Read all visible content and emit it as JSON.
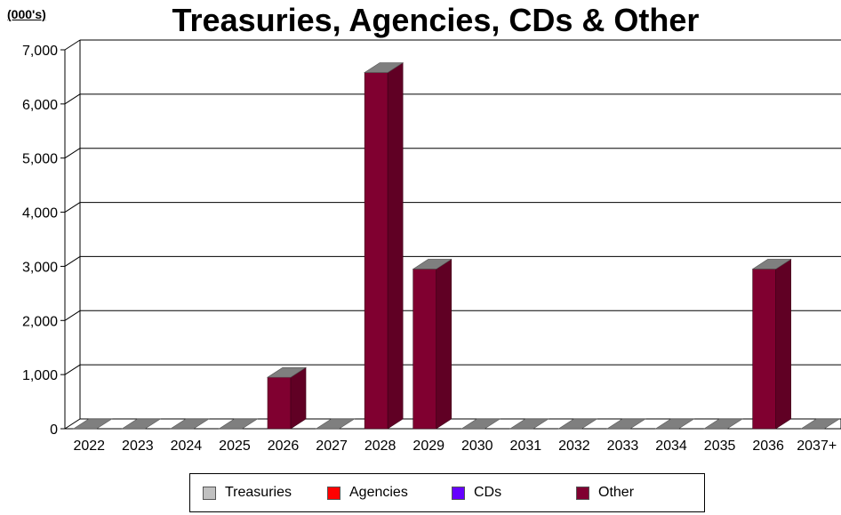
{
  "chart_data": {
    "type": "bar",
    "unit_label": "(000's)",
    "title": "Treasuries, Agencies, CDs & Other",
    "categories": [
      "2022",
      "2023",
      "2024",
      "2025",
      "2026",
      "2027",
      "2028",
      "2029",
      "2030",
      "2031",
      "2032",
      "2033",
      "2034",
      "2035",
      "2036",
      "2037+"
    ],
    "ylim": [
      0,
      7000
    ],
    "yticks": [
      "0",
      "1,000",
      "2,000",
      "3,000",
      "4,000",
      "5,000",
      "6,000",
      "7,000"
    ],
    "ytick_values": [
      0,
      1000,
      2000,
      3000,
      4000,
      5000,
      6000,
      7000
    ],
    "grid": true,
    "legend_position": "bottom",
    "series": [
      {
        "name": "Treasuries",
        "color": "#c0c0c0",
        "values": [
          0,
          0,
          0,
          0,
          0,
          0,
          0,
          0,
          0,
          0,
          0,
          0,
          0,
          0,
          0,
          0
        ]
      },
      {
        "name": "Agencies",
        "color": "#ff0000",
        "values": [
          0,
          0,
          0,
          0,
          0,
          0,
          0,
          0,
          0,
          0,
          0,
          0,
          0,
          0,
          0,
          0
        ]
      },
      {
        "name": "CDs",
        "color": "#6600ff",
        "values": [
          0,
          0,
          0,
          0,
          0,
          0,
          0,
          0,
          0,
          0,
          0,
          0,
          0,
          0,
          0,
          0
        ]
      },
      {
        "name": "Other",
        "color": "#800030",
        "values": [
          0,
          0,
          0,
          0,
          950,
          0,
          6580,
          2950,
          0,
          0,
          0,
          0,
          0,
          0,
          2950,
          0
        ]
      }
    ]
  }
}
